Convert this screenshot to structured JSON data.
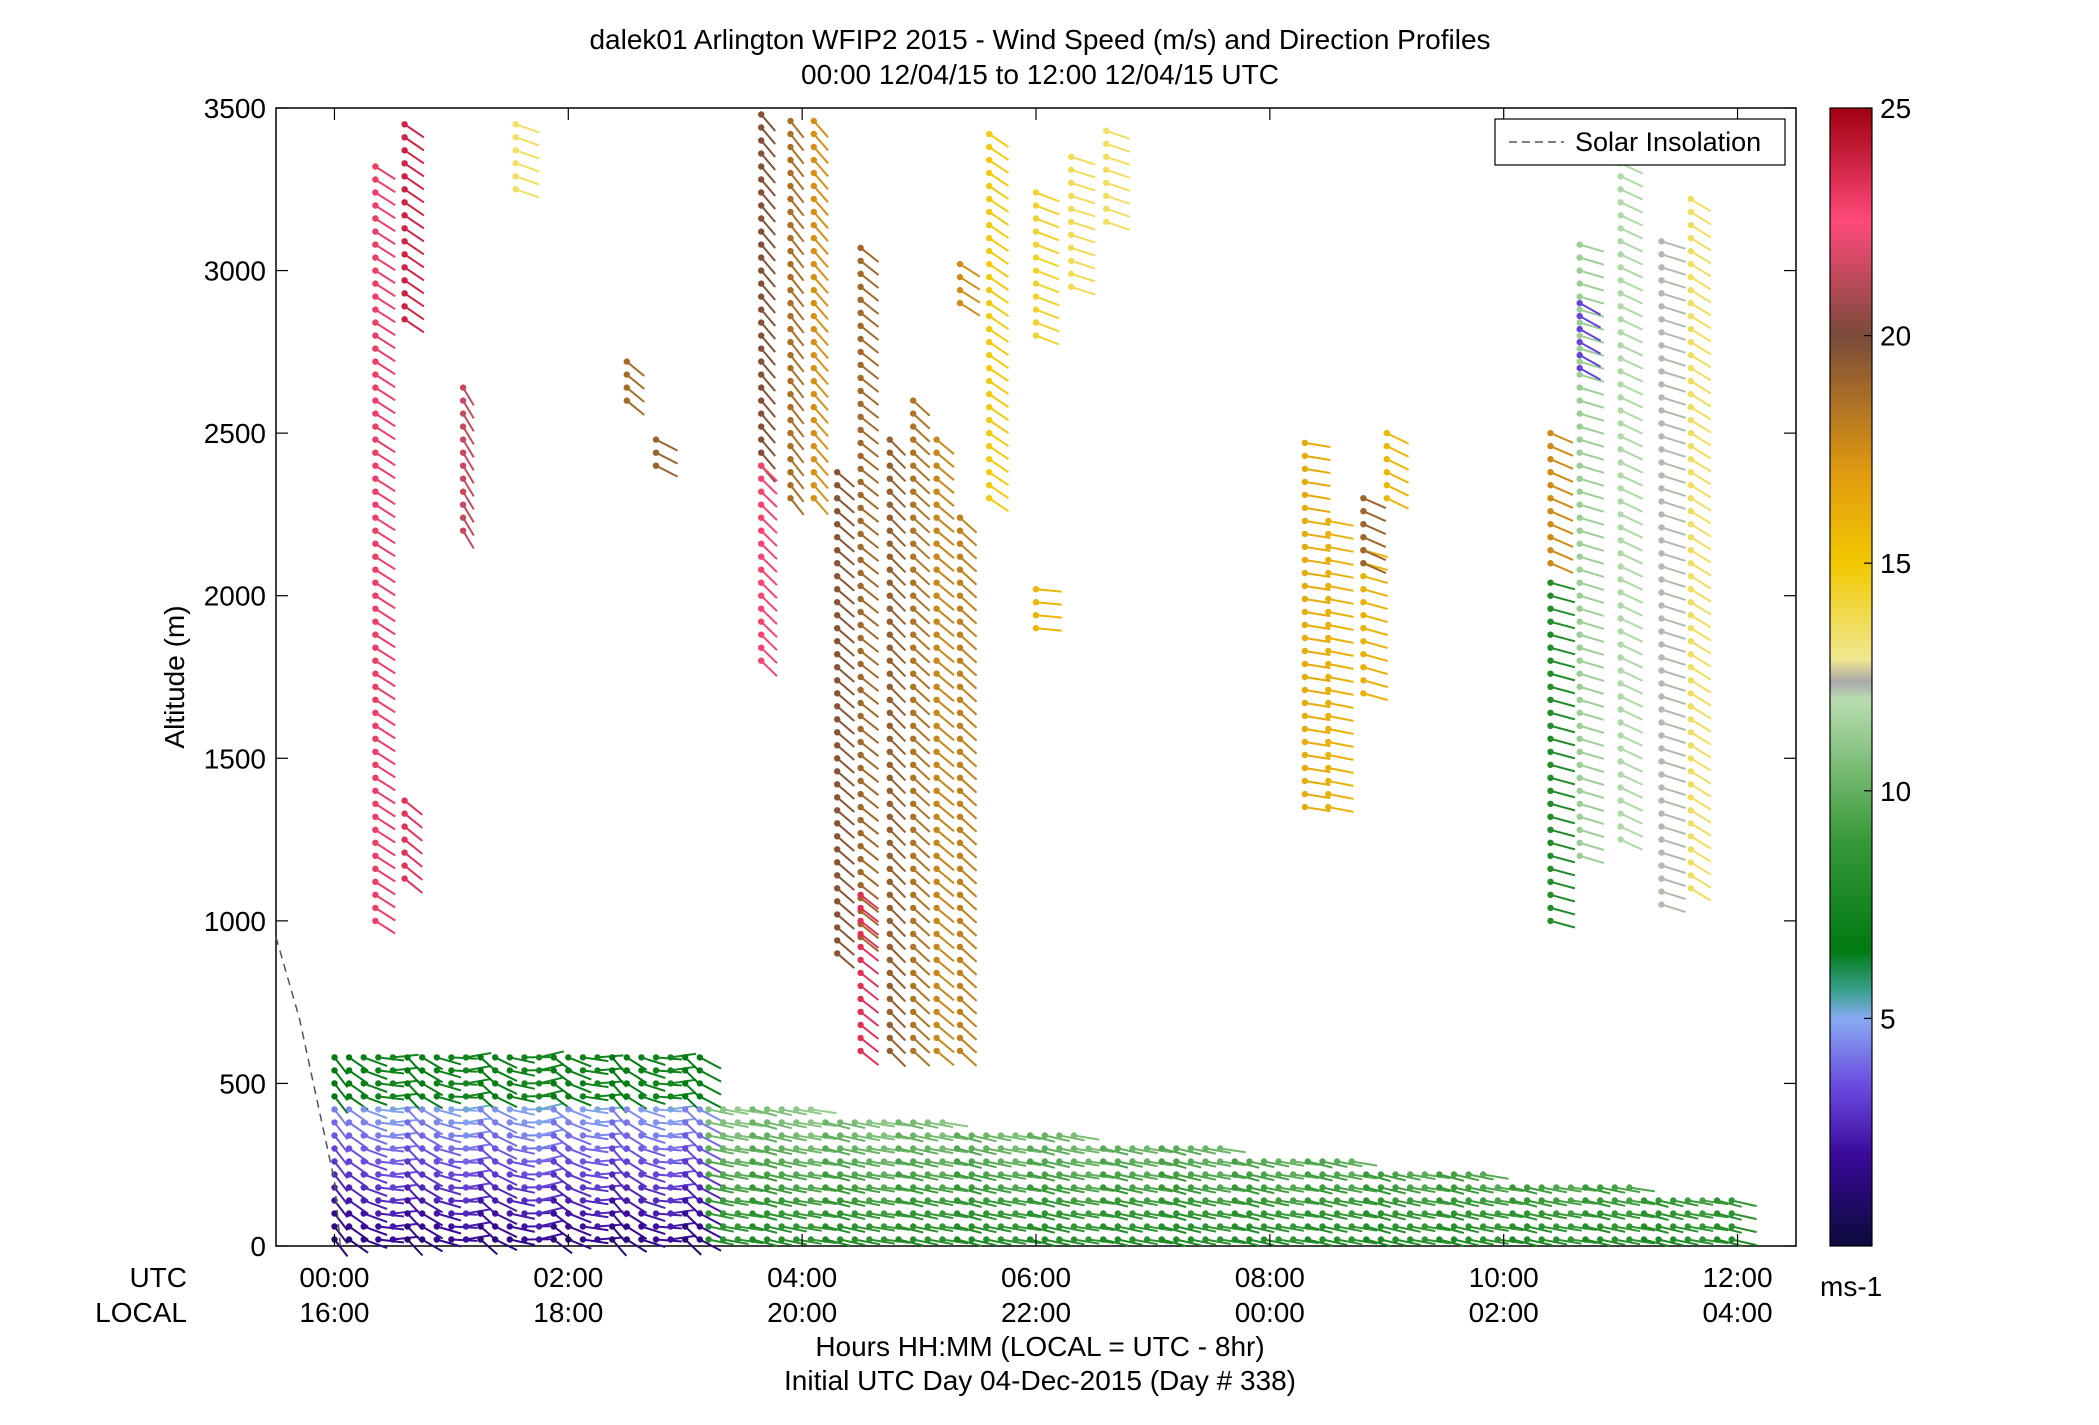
{
  "chart_data": {
    "type": "scatter",
    "title_line1": "dalek01 Arlington WFIP2 2015 - Wind Speed (m/s) and Direction Profiles",
    "title_line2": "00:00 12/04/15 to 12:00 12/04/15  UTC",
    "ylabel": "Altitude (m)",
    "xlabel_line1": "Hours HH:MM  (LOCAL = UTC - 8hr)",
    "xlabel_line2": "Initial UTC Day 04-Dec-2015 (Day # 338)",
    "row_label_utc": "UTC",
    "row_label_local": "LOCAL",
    "xlim_hours": [
      -0.5,
      12.5
    ],
    "ylim": [
      0,
      3500
    ],
    "y_ticks": [
      0,
      500,
      1000,
      1500,
      2000,
      2500,
      3000,
      3500
    ],
    "x_ticks_hours": [
      0,
      2,
      4,
      6,
      8,
      10,
      12
    ],
    "x_tick_labels_utc": [
      "00:00",
      "02:00",
      "04:00",
      "06:00",
      "08:00",
      "10:00",
      "12:00"
    ],
    "x_tick_labels_local": [
      "16:00",
      "18:00",
      "20:00",
      "22:00",
      "00:00",
      "02:00",
      "04:00"
    ],
    "legend": {
      "label": "Solar Insolation",
      "position": "top-right"
    },
    "solar_insolation": {
      "hours": [
        -0.5,
        -0.3,
        -0.15,
        0.0,
        0.05
      ],
      "altitude_equiv": [
        950,
        700,
        450,
        200,
        0
      ]
    },
    "colorbar": {
      "range": [
        0,
        25
      ],
      "ticks": [
        5,
        10,
        15,
        20,
        25
      ],
      "unit_label": "ms-1",
      "stops": [
        {
          "v": 0,
          "color": "#0a0a3a"
        },
        {
          "v": 2,
          "color": "#3a0a9a"
        },
        {
          "v": 3.5,
          "color": "#6a4ae0"
        },
        {
          "v": 5,
          "color": "#88aaf0"
        },
        {
          "v": 5.6,
          "color": "#3aa090"
        },
        {
          "v": 6.5,
          "color": "#007a10"
        },
        {
          "v": 9,
          "color": "#3a9a3a"
        },
        {
          "v": 12,
          "color": "#b8ddb0"
        },
        {
          "v": 12.4,
          "color": "#aaaaaa"
        },
        {
          "v": 12.9,
          "color": "#f0e890"
        },
        {
          "v": 15,
          "color": "#f2c800"
        },
        {
          "v": 17,
          "color": "#e09a10"
        },
        {
          "v": 20,
          "color": "#7a4a3a"
        },
        {
          "v": 22.5,
          "color": "#ff4a7a"
        },
        {
          "v": 25,
          "color": "#a00010"
        }
      ]
    },
    "profiles": [
      {
        "t": 0.35,
        "levels": [
          [
            1000,
            3350,
            3480,
            23,
            230
          ]
        ]
      },
      {
        "t": 0.6,
        "levels": [
          [
            2850,
            3480,
            3480,
            23.5,
            225
          ],
          [
            1130,
            1400,
            1400,
            23,
            220
          ]
        ]
      },
      {
        "t": 1.1,
        "levels": [
          [
            2200,
            2650,
            2650,
            21.5,
            205
          ]
        ]
      },
      {
        "t": 1.55,
        "levels": [
          [
            3250,
            3450,
            3450,
            14,
            250
          ]
        ]
      },
      {
        "t": 2.5,
        "levels": [
          [
            2600,
            2750,
            2750,
            19,
            225
          ]
        ]
      },
      {
        "t": 2.75,
        "levels": [
          [
            2400,
            2500,
            2500,
            19,
            235
          ]
        ]
      },
      {
        "t": 3.65,
        "levels": [
          [
            2400,
            3480,
            3480,
            19.5,
            210
          ],
          [
            1800,
            2400,
            1800,
            22.5,
            215
          ]
        ]
      },
      {
        "t": 3.9,
        "levels": [
          [
            2300,
            3480,
            3480,
            19,
            215
          ]
        ]
      },
      {
        "t": 4.1,
        "levels": [
          [
            2300,
            3480,
            3480,
            17.5,
            215
          ]
        ]
      },
      {
        "t": 4.3,
        "levels": [
          [
            900,
            2400,
            2400,
            19.5,
            220
          ]
        ]
      },
      {
        "t": 4.5,
        "levels": [
          [
            950,
            3100,
            3100,
            18.5,
            220
          ],
          [
            600,
            1100,
            1100,
            23,
            220
          ]
        ]
      },
      {
        "t": 4.75,
        "levels": [
          [
            600,
            2500,
            2500,
            19.5,
            220
          ]
        ]
      },
      {
        "t": 4.95,
        "levels": [
          [
            600,
            2600,
            2600,
            18.5,
            220
          ]
        ]
      },
      {
        "t": 5.15,
        "levels": [
          [
            600,
            2500,
            2500,
            17.5,
            220
          ]
        ]
      },
      {
        "t": 5.35,
        "levels": [
          [
            600,
            2250,
            2250,
            17.5,
            215
          ],
          [
            2900,
            3050,
            3050,
            17,
            225
          ]
        ]
      },
      {
        "t": 5.6,
        "levels": [
          [
            2300,
            3450,
            3450,
            15,
            230
          ]
        ]
      },
      {
        "t": 6.0,
        "levels": [
          [
            1900,
            2050,
            2050,
            15.5,
            260
          ],
          [
            2800,
            3250,
            3250,
            14,
            240
          ]
        ]
      },
      {
        "t": 6.3,
        "levels": [
          [
            2950,
            3350,
            3350,
            14,
            250
          ]
        ]
      },
      {
        "t": 6.6,
        "levels": [
          [
            3150,
            3450,
            3450,
            13.5,
            245
          ]
        ]
      },
      {
        "t": 8.3,
        "levels": [
          [
            1350,
            2500,
            2500,
            16,
            255
          ]
        ]
      },
      {
        "t": 8.5,
        "levels": [
          [
            1350,
            2250,
            2250,
            16.5,
            260
          ]
        ]
      },
      {
        "t": 8.8,
        "levels": [
          [
            1700,
            2150,
            2150,
            16,
            250
          ],
          [
            2100,
            2300,
            2300,
            19,
            240
          ]
        ]
      },
      {
        "t": 9.0,
        "levels": [
          [
            2300,
            2500,
            2500,
            15.5,
            235
          ]
        ]
      },
      {
        "t": 10.4,
        "levels": [
          [
            1000,
            2050,
            2050,
            8,
            250
          ],
          [
            2100,
            2500,
            2500,
            17.5,
            240
          ]
        ]
      },
      {
        "t": 10.65,
        "levels": [
          [
            1200,
            3100,
            3100,
            11,
            245
          ],
          [
            2700,
            2900,
            2900,
            3,
            230
          ]
        ]
      },
      {
        "t": 11.0,
        "levels": [
          [
            1250,
            3350,
            3350,
            12,
            240
          ]
        ]
      },
      {
        "t": 11.35,
        "levels": [
          [
            1050,
            3100,
            3100,
            12,
            245
          ]
        ]
      },
      {
        "t": 11.6,
        "levels": [
          [
            1100,
            3250,
            3250,
            14,
            235
          ]
        ]
      }
    ],
    "low_level_regime": [
      {
        "t0": 0.0,
        "t1": 3.2,
        "top": 600,
        "speed_low": 2.5,
        "speed_high": 8,
        "note_levels": [
          [
            50,
            450,
            3
          ],
          [
            450,
            600,
            7
          ]
        ]
      },
      {
        "t0": 3.2,
        "t1": 12.0,
        "top": 450,
        "speed_low": 8,
        "speed_high": 11
      }
    ]
  }
}
